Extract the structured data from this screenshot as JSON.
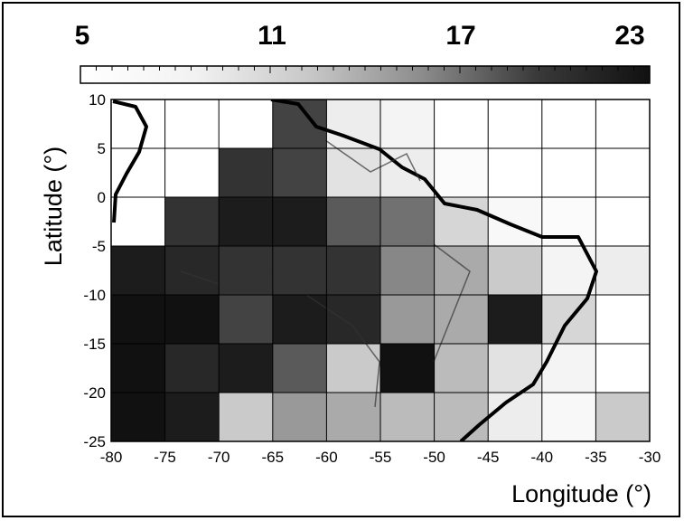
{
  "chart_data": {
    "type": "heatmap",
    "colorbar": {
      "min": 5,
      "max": 23,
      "tick_labels": [
        "5",
        "11",
        "17",
        "23"
      ],
      "colors": [
        "#ffffff",
        "#f2f2f2",
        "#c8c8c8",
        "#8c8c8c",
        "#3a3a3a",
        "#111111"
      ]
    },
    "xlabel": "Longitude (°)",
    "ylabel": "Latitude (°)",
    "xlim": [
      -80,
      -30
    ],
    "ylim": [
      -25,
      10
    ],
    "x_tick_labels": [
      "-80",
      "-75",
      "-70",
      "-65",
      "-60",
      "-55",
      "-50",
      "-45",
      "-40",
      "-35",
      "-30"
    ],
    "y_tick_labels": [
      "10",
      "5",
      "0",
      "-5",
      "-10",
      "-15",
      "-20",
      "-25"
    ],
    "cell_size_deg": 5,
    "grid": true,
    "cells": [
      {
        "lon": -80,
        "lat": 5,
        "value": 5
      },
      {
        "lon": -75,
        "lat": 5,
        "value": 5
      },
      {
        "lon": -70,
        "lat": 5,
        "value": 5
      },
      {
        "lon": -65,
        "lat": 5,
        "value": 19
      },
      {
        "lon": -60,
        "lat": 5,
        "value": 9
      },
      {
        "lon": -55,
        "lat": 5,
        "value": 8
      },
      {
        "lon": -50,
        "lat": 5,
        "value": 5
      },
      {
        "lon": -45,
        "lat": 5,
        "value": 5
      },
      {
        "lon": -40,
        "lat": 5,
        "value": 5
      },
      {
        "lon": -35,
        "lat": 5,
        "value": 5
      },
      {
        "lon": -80,
        "lat": 0,
        "value": 5
      },
      {
        "lon": -75,
        "lat": 0,
        "value": 5
      },
      {
        "lon": -70,
        "lat": 0,
        "value": 20
      },
      {
        "lon": -65,
        "lat": 0,
        "value": 19
      },
      {
        "lon": -60,
        "lat": 0,
        "value": 10
      },
      {
        "lon": -55,
        "lat": 0,
        "value": 9
      },
      {
        "lon": -50,
        "lat": 0,
        "value": 6
      },
      {
        "lon": -45,
        "lat": 0,
        "value": 5
      },
      {
        "lon": -40,
        "lat": 0,
        "value": 5
      },
      {
        "lon": -35,
        "lat": 0,
        "value": 5
      },
      {
        "lon": -80,
        "lat": -5,
        "value": 5
      },
      {
        "lon": -75,
        "lat": -5,
        "value": 20
      },
      {
        "lon": -70,
        "lat": -5,
        "value": 22
      },
      {
        "lon": -65,
        "lat": -5,
        "value": 22
      },
      {
        "lon": -60,
        "lat": -5,
        "value": 18
      },
      {
        "lon": -55,
        "lat": -5,
        "value": 17
      },
      {
        "lon": -50,
        "lat": -5,
        "value": 11
      },
      {
        "lon": -45,
        "lat": -5,
        "value": 7
      },
      {
        "lon": -40,
        "lat": -5,
        "value": 6
      },
      {
        "lon": -35,
        "lat": -5,
        "value": 5
      },
      {
        "lon": -80,
        "lat": -10,
        "value": 22
      },
      {
        "lon": -75,
        "lat": -10,
        "value": 21
      },
      {
        "lon": -70,
        "lat": -10,
        "value": 20
      },
      {
        "lon": -65,
        "lat": -10,
        "value": 20
      },
      {
        "lon": -60,
        "lat": -10,
        "value": 20
      },
      {
        "lon": -55,
        "lat": -10,
        "value": 16
      },
      {
        "lon": -50,
        "lat": -10,
        "value": 14
      },
      {
        "lon": -45,
        "lat": -10,
        "value": 12
      },
      {
        "lon": -40,
        "lat": -10,
        "value": 8
      },
      {
        "lon": -35,
        "lat": -10,
        "value": 9
      },
      {
        "lon": -80,
        "lat": -15,
        "value": 23
      },
      {
        "lon": -75,
        "lat": -15,
        "value": 23
      },
      {
        "lon": -70,
        "lat": -15,
        "value": 19
      },
      {
        "lon": -65,
        "lat": -15,
        "value": 22
      },
      {
        "lon": -60,
        "lat": -15,
        "value": 21
      },
      {
        "lon": -55,
        "lat": -15,
        "value": 15
      },
      {
        "lon": -50,
        "lat": -15,
        "value": 14
      },
      {
        "lon": -45,
        "lat": -15,
        "value": 22
      },
      {
        "lon": -40,
        "lat": -15,
        "value": 11
      },
      {
        "lon": -35,
        "lat": -15,
        "value": 5
      },
      {
        "lon": -80,
        "lat": -20,
        "value": 23
      },
      {
        "lon": -75,
        "lat": -20,
        "value": 21
      },
      {
        "lon": -70,
        "lat": -20,
        "value": 22
      },
      {
        "lon": -65,
        "lat": -20,
        "value": 18
      },
      {
        "lon": -60,
        "lat": -20,
        "value": 12
      },
      {
        "lon": -55,
        "lat": -20,
        "value": 23
      },
      {
        "lon": -50,
        "lat": -20,
        "value": 13
      },
      {
        "lon": -45,
        "lat": -20,
        "value": 10
      },
      {
        "lon": -40,
        "lat": -20,
        "value": 8
      },
      {
        "lon": -35,
        "lat": -20,
        "value": 5
      },
      {
        "lon": -80,
        "lat": -25,
        "value": 23
      },
      {
        "lon": -75,
        "lat": -25,
        "value": 22
      },
      {
        "lon": -70,
        "lat": -25,
        "value": 12
      },
      {
        "lon": -65,
        "lat": -25,
        "value": 15
      },
      {
        "lon": -60,
        "lat": -25,
        "value": 14
      },
      {
        "lon": -55,
        "lat": -25,
        "value": 13
      },
      {
        "lon": -50,
        "lat": -25,
        "value": 13
      },
      {
        "lon": -45,
        "lat": -25,
        "value": 9
      },
      {
        "lon": -40,
        "lat": -25,
        "value": 7
      },
      {
        "lon": -35,
        "lat": -25,
        "value": 12
      }
    ]
  }
}
